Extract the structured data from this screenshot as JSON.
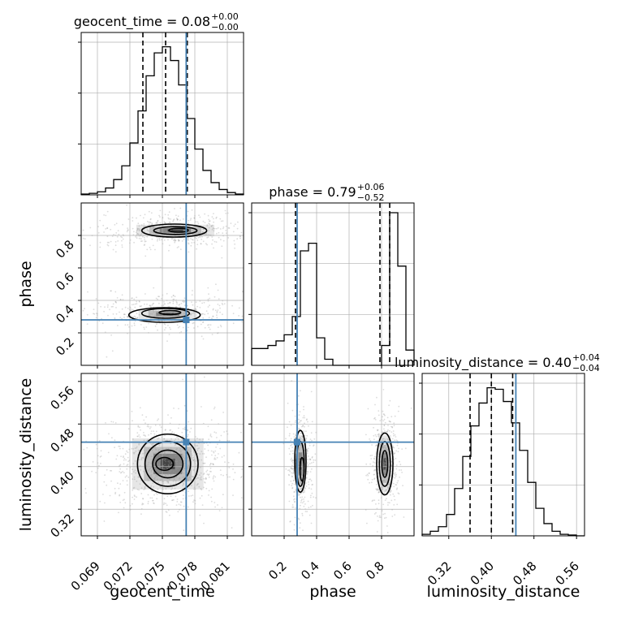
{
  "colors": {
    "truth": "#4682b4",
    "hist": "#000000",
    "scatter": "#9a9a9a",
    "grid": "#b0b0b0",
    "quantile": "#000000"
  },
  "chart_data": {
    "type": "corner",
    "parameters": [
      "geocent_time",
      "phase",
      "luminosity_distance"
    ],
    "ranges": {
      "geocent_time": [
        0.0675,
        0.0825
      ],
      "phase": [
        0.0,
        1.0
      ],
      "luminosity_distance": [
        0.27,
        0.575
      ]
    },
    "ticks": {
      "geocent_time": [
        0.069,
        0.072,
        0.075,
        0.078,
        0.081
      ],
      "phase": [
        0.2,
        0.4,
        0.6,
        0.8
      ],
      "luminosity_distance": [
        0.32,
        0.4,
        0.48,
        0.56
      ]
    },
    "tick_labels": {
      "geocent_time": [
        "0.069",
        "0.072",
        "0.075",
        "0.078",
        "0.081"
      ],
      "phase": [
        "0.2",
        "0.4",
        "0.6",
        "0.8"
      ],
      "luminosity_distance": [
        "0.32",
        "0.40",
        "0.48",
        "0.56"
      ]
    },
    "truths": {
      "geocent_time": 0.0772,
      "phase": 0.28,
      "luminosity_distance": 0.446
    },
    "quantiles": {
      "geocent_time": [
        0.0732,
        0.0753,
        0.0773
      ],
      "phase": [
        0.27,
        0.79,
        0.85
      ],
      "luminosity_distance": [
        0.36,
        0.4,
        0.44
      ]
    },
    "titles": [
      {
        "param": "geocent_time",
        "main": "geocent_time = 0.08",
        "plus": "+0.00",
        "minus": "−0.00"
      },
      {
        "param": "phase",
        "main": "phase = 0.79",
        "plus": "+0.06",
        "minus": "−0.52"
      },
      {
        "param": "luminosity_distance",
        "main": "luminosity_distance = 0.40",
        "plus": "+0.04",
        "minus": "−0.04"
      }
    ],
    "hist1d": {
      "geocent_time": {
        "bin_start": 0.0675,
        "bin_width": 0.00075,
        "values": [
          0.005,
          0.01,
          0.02,
          0.045,
          0.1,
          0.19,
          0.34,
          0.55,
          0.78,
          0.93,
          0.97,
          0.88,
          0.72,
          0.5,
          0.3,
          0.16,
          0.08,
          0.035,
          0.015,
          0.005
        ]
      },
      "phase": {
        "bin_start": 0.0,
        "bin_width": 0.05,
        "values": [
          0.11,
          0.11,
          0.13,
          0.16,
          0.2,
          0.32,
          0.75,
          0.8,
          0.18,
          0.04,
          0.0,
          0.0,
          0.0,
          0.0,
          0.0,
          0.0,
          0.13,
          1.0,
          0.65,
          0.1
        ]
      },
      "luminosity_distance": {
        "bin_start": 0.27,
        "bin_width": 0.01525,
        "values": [
          0.01,
          0.03,
          0.06,
          0.14,
          0.31,
          0.52,
          0.72,
          0.87,
          0.97,
          0.96,
          0.88,
          0.74,
          0.56,
          0.35,
          0.18,
          0.08,
          0.03,
          0.01,
          0.005,
          0.0
        ]
      }
    },
    "axis_labels": {
      "geocent_time": "geocent_time",
      "phase": "phase",
      "luminosity_distance": "luminosity_distance"
    }
  }
}
